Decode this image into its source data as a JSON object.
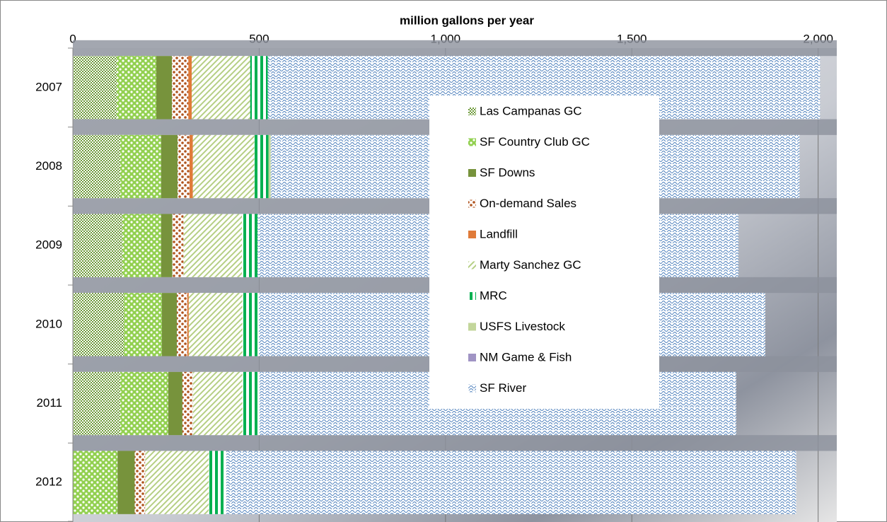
{
  "chart_data": {
    "type": "stacked-barh",
    "title": "million gallons per year",
    "categories": [
      "2007",
      "2008",
      "2009",
      "2010",
      "2011",
      "2012"
    ],
    "series": [
      {
        "name": "Las Campanas GC",
        "color": "#6e9a3a",
        "values": [
          118,
          127,
          133,
          137,
          127,
          0
        ]
      },
      {
        "name": "SF Country Club GC",
        "color": "#92d050",
        "values": [
          106,
          110,
          104,
          102,
          129,
          120
        ]
      },
      {
        "name": "SF Downs",
        "color": "#77933c",
        "values": [
          42,
          44,
          30,
          40,
          38,
          46
        ]
      },
      {
        "name": "On-demand Sales",
        "color": "#b0541e",
        "values": [
          44,
          32,
          30,
          28,
          28,
          28
        ]
      },
      {
        "name": "Landfill",
        "color": "#e07b39",
        "values": [
          9,
          9,
          0,
          4,
          0,
          0
        ]
      },
      {
        "name": "Marty Sanchez GC",
        "color": "#b5cf84",
        "values": [
          157,
          165,
          157,
          144,
          133,
          171
        ]
      },
      {
        "name": "MRC",
        "color": "#00b050",
        "values": [
          47,
          38,
          42,
          44,
          46,
          47
        ]
      },
      {
        "name": "USFS Livestock",
        "color": "#c3d69b",
        "values": [
          0,
          6,
          0,
          0,
          0,
          0
        ]
      },
      {
        "name": "NM Game & Fish",
        "color": "#a094c4",
        "values": [
          0,
          0,
          0,
          0,
          0,
          0
        ]
      },
      {
        "name": "SF River",
        "color": "#4f81bd",
        "values": [
          1482,
          1419,
          1290,
          1359,
          1279,
          1529
        ]
      }
    ],
    "xlim": [
      0,
      2050
    ],
    "xticks": [
      0,
      500,
      {
        "value": 1000,
        "label": "1,000"
      },
      {
        "value": 1500,
        "label": "1,500"
      },
      {
        "value": 2000,
        "label": "2,000"
      }
    ],
    "grid": true
  }
}
